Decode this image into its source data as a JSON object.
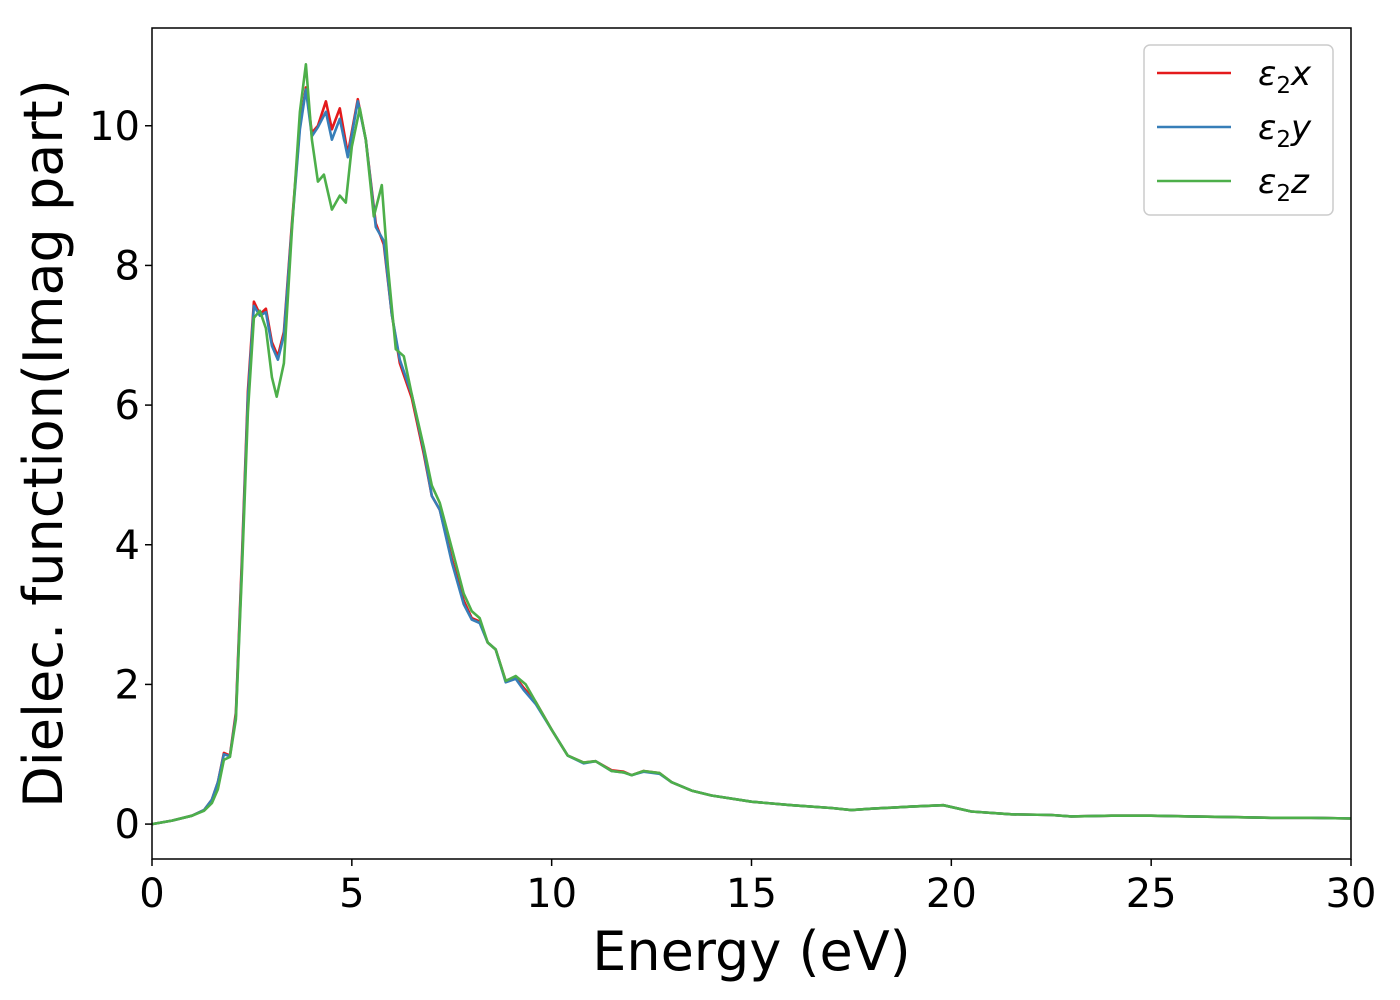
{
  "chart_data": {
    "type": "line",
    "xlabel": "Energy (eV)",
    "ylabel": "Dielec. function(Imag part)",
    "xlim": [
      0,
      30
    ],
    "ylim": [
      -0.5,
      11.4
    ],
    "x_ticks": [
      0,
      5,
      10,
      15,
      20,
      25,
      30
    ],
    "y_ticks": [
      0,
      2,
      4,
      6,
      8,
      10
    ],
    "grid": false,
    "legend_position": "top-right",
    "series": [
      {
        "name": "ε2x",
        "legend_base": "ε",
        "legend_sub": "2",
        "legend_suffix": "x",
        "color": "#e41a1c",
        "points": [
          [
            0,
            0
          ],
          [
            0.5,
            0.05
          ],
          [
            1.0,
            0.12
          ],
          [
            1.3,
            0.2
          ],
          [
            1.5,
            0.35
          ],
          [
            1.65,
            0.6
          ],
          [
            1.8,
            1.02
          ],
          [
            1.95,
            0.98
          ],
          [
            2.1,
            1.6
          ],
          [
            2.25,
            3.8
          ],
          [
            2.4,
            6.2
          ],
          [
            2.55,
            7.48
          ],
          [
            2.7,
            7.3
          ],
          [
            2.85,
            7.38
          ],
          [
            3.0,
            6.9
          ],
          [
            3.15,
            6.7
          ],
          [
            3.3,
            7.05
          ],
          [
            3.5,
            8.6
          ],
          [
            3.7,
            10.0
          ],
          [
            3.85,
            10.55
          ],
          [
            4.0,
            9.9
          ],
          [
            4.15,
            10.0
          ],
          [
            4.35,
            10.35
          ],
          [
            4.5,
            9.95
          ],
          [
            4.7,
            10.25
          ],
          [
            4.9,
            9.6
          ],
          [
            5.15,
            10.38
          ],
          [
            5.35,
            9.8
          ],
          [
            5.6,
            8.6
          ],
          [
            5.8,
            8.3
          ],
          [
            6.0,
            7.3
          ],
          [
            6.2,
            6.6
          ],
          [
            6.5,
            6.1
          ],
          [
            6.8,
            5.3
          ],
          [
            7.0,
            4.7
          ],
          [
            7.2,
            4.5
          ],
          [
            7.5,
            3.8
          ],
          [
            7.8,
            3.2
          ],
          [
            8.0,
            2.95
          ],
          [
            8.2,
            2.9
          ],
          [
            8.4,
            2.6
          ],
          [
            8.6,
            2.5
          ],
          [
            8.85,
            2.05
          ],
          [
            9.1,
            2.1
          ],
          [
            9.3,
            1.95
          ],
          [
            9.6,
            1.75
          ],
          [
            10.0,
            1.35
          ],
          [
            10.4,
            0.98
          ],
          [
            10.8,
            0.88
          ],
          [
            11.1,
            0.9
          ],
          [
            11.5,
            0.77
          ],
          [
            11.8,
            0.75
          ],
          [
            12.0,
            0.7
          ],
          [
            12.3,
            0.76
          ],
          [
            12.7,
            0.73
          ],
          [
            13.0,
            0.6
          ],
          [
            13.5,
            0.48
          ],
          [
            14.0,
            0.41
          ],
          [
            15.0,
            0.32
          ],
          [
            16.0,
            0.27
          ],
          [
            17.0,
            0.23
          ],
          [
            17.5,
            0.2
          ],
          [
            18.0,
            0.22
          ],
          [
            19.0,
            0.25
          ],
          [
            19.8,
            0.27
          ],
          [
            20.5,
            0.18
          ],
          [
            21.5,
            0.14
          ],
          [
            22.5,
            0.13
          ],
          [
            23.0,
            0.11
          ],
          [
            24.0,
            0.12
          ],
          [
            25.0,
            0.12
          ],
          [
            26.0,
            0.11
          ],
          [
            27.0,
            0.1
          ],
          [
            28.0,
            0.09
          ],
          [
            29.0,
            0.09
          ],
          [
            30.0,
            0.08
          ]
        ]
      },
      {
        "name": "ε2y",
        "legend_base": "ε",
        "legend_sub": "2",
        "legend_suffix": "y",
        "color": "#377eb8",
        "points": [
          [
            0,
            0
          ],
          [
            0.5,
            0.05
          ],
          [
            1.0,
            0.12
          ],
          [
            1.3,
            0.2
          ],
          [
            1.5,
            0.35
          ],
          [
            1.65,
            0.6
          ],
          [
            1.8,
            1.0
          ],
          [
            1.95,
            0.97
          ],
          [
            2.1,
            1.55
          ],
          [
            2.25,
            3.7
          ],
          [
            2.4,
            6.1
          ],
          [
            2.55,
            7.42
          ],
          [
            2.7,
            7.28
          ],
          [
            2.85,
            7.33
          ],
          [
            3.0,
            6.85
          ],
          [
            3.15,
            6.65
          ],
          [
            3.3,
            7.0
          ],
          [
            3.5,
            8.55
          ],
          [
            3.7,
            9.95
          ],
          [
            3.85,
            10.52
          ],
          [
            4.0,
            9.85
          ],
          [
            4.15,
            9.98
          ],
          [
            4.35,
            10.2
          ],
          [
            4.5,
            9.8
          ],
          [
            4.7,
            10.1
          ],
          [
            4.9,
            9.55
          ],
          [
            5.15,
            10.35
          ],
          [
            5.35,
            9.8
          ],
          [
            5.6,
            8.55
          ],
          [
            5.8,
            8.35
          ],
          [
            6.0,
            7.3
          ],
          [
            6.2,
            6.65
          ],
          [
            6.5,
            6.15
          ],
          [
            6.8,
            5.35
          ],
          [
            7.0,
            4.7
          ],
          [
            7.2,
            4.5
          ],
          [
            7.5,
            3.75
          ],
          [
            7.8,
            3.15
          ],
          [
            8.0,
            2.93
          ],
          [
            8.2,
            2.88
          ],
          [
            8.4,
            2.6
          ],
          [
            8.6,
            2.5
          ],
          [
            8.85,
            2.03
          ],
          [
            9.1,
            2.08
          ],
          [
            9.3,
            1.92
          ],
          [
            9.6,
            1.72
          ],
          [
            10.0,
            1.35
          ],
          [
            10.4,
            0.98
          ],
          [
            10.8,
            0.87
          ],
          [
            11.1,
            0.9
          ],
          [
            11.5,
            0.76
          ],
          [
            11.8,
            0.74
          ],
          [
            12.0,
            0.7
          ],
          [
            12.3,
            0.75
          ],
          [
            12.7,
            0.72
          ],
          [
            13.0,
            0.6
          ],
          [
            13.5,
            0.48
          ],
          [
            14.0,
            0.41
          ],
          [
            15.0,
            0.32
          ],
          [
            16.0,
            0.27
          ],
          [
            17.0,
            0.23
          ],
          [
            17.5,
            0.2
          ],
          [
            18.0,
            0.22
          ],
          [
            19.0,
            0.25
          ],
          [
            19.8,
            0.27
          ],
          [
            20.5,
            0.18
          ],
          [
            21.5,
            0.14
          ],
          [
            22.5,
            0.13
          ],
          [
            23.0,
            0.11
          ],
          [
            24.0,
            0.12
          ],
          [
            25.0,
            0.12
          ],
          [
            26.0,
            0.11
          ],
          [
            27.0,
            0.1
          ],
          [
            28.0,
            0.09
          ],
          [
            29.0,
            0.09
          ],
          [
            30.0,
            0.08
          ]
        ]
      },
      {
        "name": "ε2z",
        "legend_base": "ε",
        "legend_sub": "2",
        "legend_suffix": "z",
        "color": "#4daf4a",
        "points": [
          [
            0,
            0
          ],
          [
            0.5,
            0.05
          ],
          [
            1.0,
            0.12
          ],
          [
            1.3,
            0.19
          ],
          [
            1.5,
            0.3
          ],
          [
            1.65,
            0.5
          ],
          [
            1.8,
            0.92
          ],
          [
            1.95,
            0.96
          ],
          [
            2.1,
            1.5
          ],
          [
            2.25,
            3.6
          ],
          [
            2.4,
            5.9
          ],
          [
            2.55,
            7.25
          ],
          [
            2.7,
            7.35
          ],
          [
            2.85,
            7.1
          ],
          [
            3.0,
            6.4
          ],
          [
            3.12,
            6.12
          ],
          [
            3.3,
            6.6
          ],
          [
            3.5,
            8.5
          ],
          [
            3.7,
            10.2
          ],
          [
            3.85,
            10.88
          ],
          [
            4.0,
            9.8
          ],
          [
            4.15,
            9.2
          ],
          [
            4.3,
            9.3
          ],
          [
            4.5,
            8.8
          ],
          [
            4.7,
            9.0
          ],
          [
            4.85,
            8.9
          ],
          [
            5.0,
            9.7
          ],
          [
            5.2,
            10.25
          ],
          [
            5.35,
            9.8
          ],
          [
            5.55,
            8.7
          ],
          [
            5.75,
            9.15
          ],
          [
            5.9,
            8.0
          ],
          [
            6.1,
            6.8
          ],
          [
            6.3,
            6.7
          ],
          [
            6.5,
            6.15
          ],
          [
            6.8,
            5.4
          ],
          [
            7.0,
            4.85
          ],
          [
            7.2,
            4.6
          ],
          [
            7.5,
            3.95
          ],
          [
            7.8,
            3.3
          ],
          [
            8.0,
            3.05
          ],
          [
            8.2,
            2.95
          ],
          [
            8.4,
            2.6
          ],
          [
            8.6,
            2.5
          ],
          [
            8.85,
            2.05
          ],
          [
            9.1,
            2.12
          ],
          [
            9.35,
            2.0
          ],
          [
            9.6,
            1.75
          ],
          [
            10.0,
            1.35
          ],
          [
            10.4,
            0.98
          ],
          [
            10.8,
            0.88
          ],
          [
            11.1,
            0.9
          ],
          [
            11.5,
            0.76
          ],
          [
            11.8,
            0.74
          ],
          [
            12.0,
            0.7
          ],
          [
            12.3,
            0.76
          ],
          [
            12.7,
            0.73
          ],
          [
            13.0,
            0.6
          ],
          [
            13.5,
            0.48
          ],
          [
            14.0,
            0.41
          ],
          [
            15.0,
            0.32
          ],
          [
            16.0,
            0.27
          ],
          [
            17.0,
            0.23
          ],
          [
            17.5,
            0.2
          ],
          [
            18.0,
            0.22
          ],
          [
            19.0,
            0.25
          ],
          [
            19.8,
            0.27
          ],
          [
            20.5,
            0.18
          ],
          [
            21.5,
            0.14
          ],
          [
            22.5,
            0.13
          ],
          [
            23.0,
            0.11
          ],
          [
            24.0,
            0.12
          ],
          [
            25.0,
            0.12
          ],
          [
            26.0,
            0.11
          ],
          [
            27.0,
            0.1
          ],
          [
            28.0,
            0.09
          ],
          [
            29.0,
            0.09
          ],
          [
            30.0,
            0.08
          ]
        ]
      }
    ]
  }
}
